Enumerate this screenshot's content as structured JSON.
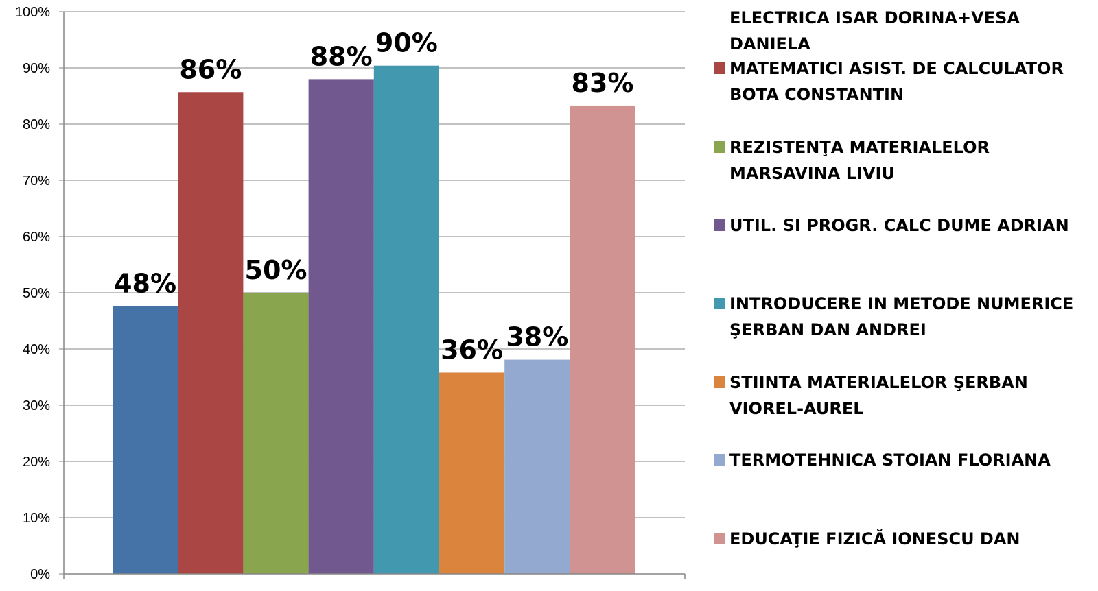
{
  "chart_data": {
    "type": "bar",
    "title": "",
    "xlabel": "",
    "ylabel": "",
    "ylim": [
      0,
      100
    ],
    "yticks": [
      "0%",
      "10%",
      "20%",
      "30%",
      "40%",
      "50%",
      "60%",
      "70%",
      "80%",
      "90%",
      "100%"
    ],
    "grid": true,
    "legend_position": "right",
    "series": [
      {
        "name": "ELECTRICA  ISAR DORINA+VESA DANIELA",
        "value": 47.6,
        "label": "48%",
        "color": "#4572A7"
      },
      {
        "name": "MATEMATICI ASIST. DE CALCULATOR BOTA CONSTANTIN",
        "value": 85.7,
        "label": "86%",
        "color": "#AA4643"
      },
      {
        "name": "REZISTENŢA MATERIALELOR MARSAVINA LIVIU",
        "value": 50.0,
        "label": "50%",
        "color": "#89A54E"
      },
      {
        "name": "UTIL. SI PROGR. CALC DUME ADRIAN",
        "value": 88.0,
        "label": "88%",
        "color": "#71588F"
      },
      {
        "name": "INTRODUCERE IN METODE NUMERICE ŞERBAN DAN ANDREI",
        "value": 90.4,
        "label": "90%",
        "color": "#4198AF"
      },
      {
        "name": "STIINTA MATERIALELOR ŞERBAN VIOREL-AUREL",
        "value": 35.8,
        "label": "36%",
        "color": "#DB843D"
      },
      {
        "name": "TERMOTEHNICA STOIAN FLORIANA",
        "value": 38.1,
        "label": "38%",
        "color": "#93A9CF"
      },
      {
        "name": "EDUCAŢIE FIZICĂ IONESCU DAN",
        "value": 83.3,
        "label": "83%",
        "color": "#D19392"
      }
    ]
  }
}
